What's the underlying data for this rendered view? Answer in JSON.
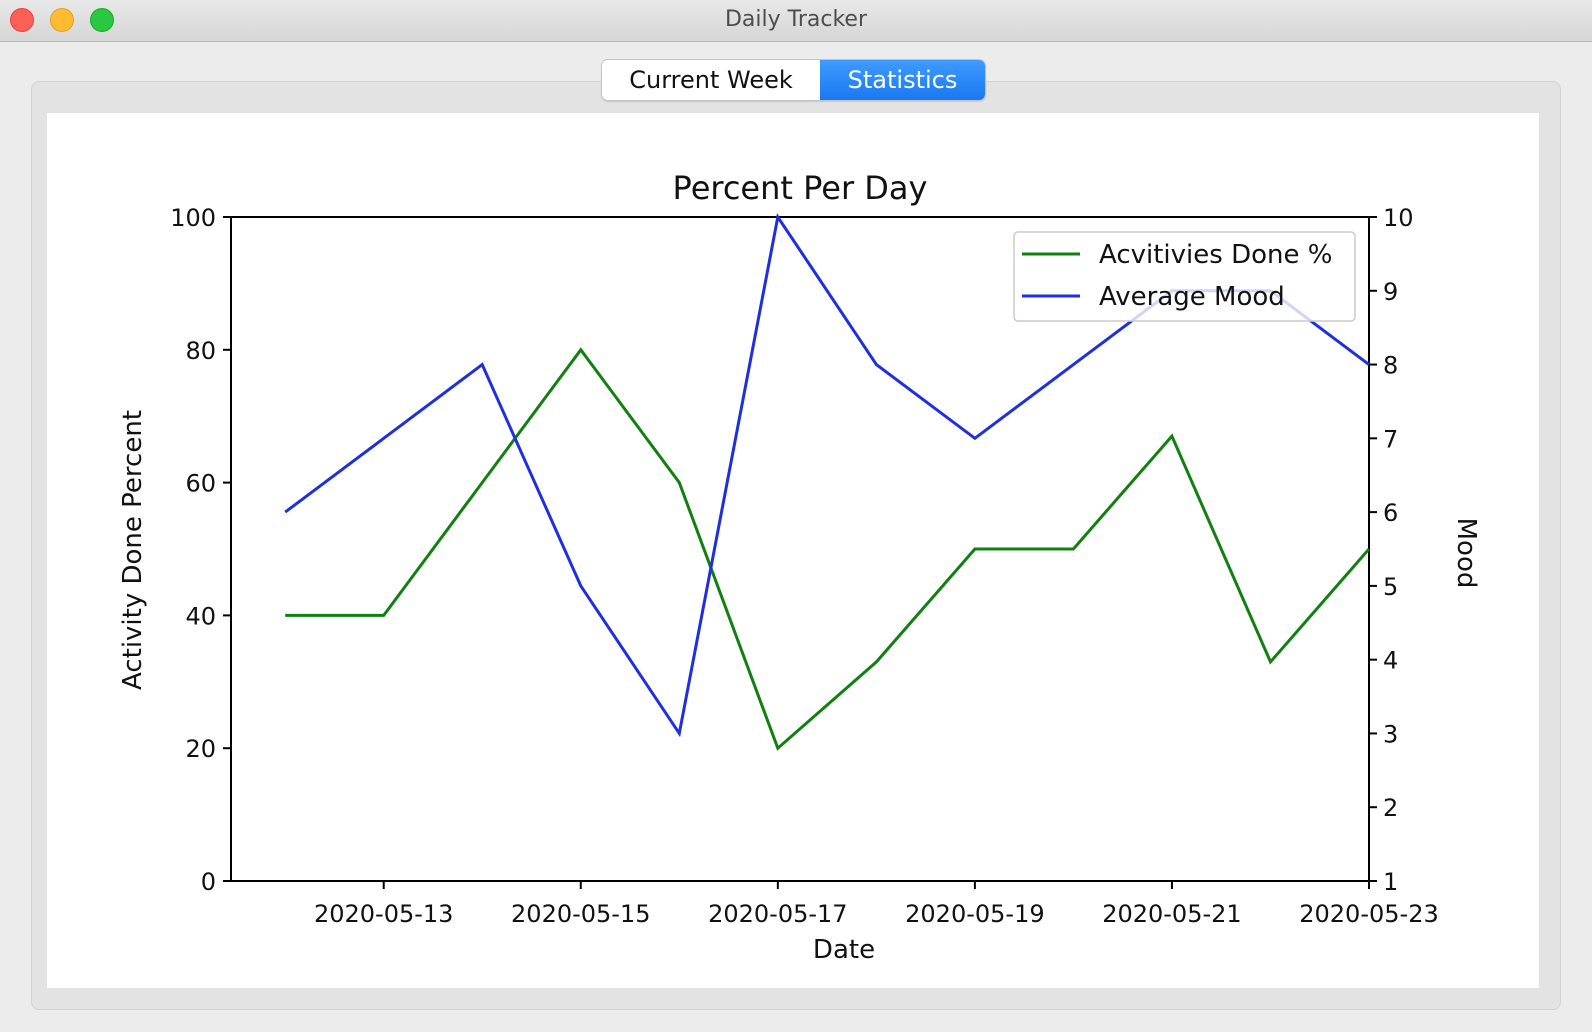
{
  "window": {
    "title": "Daily Tracker"
  },
  "tabs": [
    {
      "label": "Current Week",
      "active": false
    },
    {
      "label": "Statistics",
      "active": true
    }
  ],
  "chart_data": {
    "type": "line",
    "title": "Percent Per Day",
    "xlabel": "Date",
    "ylabel": "Activity Done Percent",
    "y2label": "Mood",
    "x": [
      "2020-05-12",
      "2020-05-13",
      "2020-05-14",
      "2020-05-15",
      "2020-05-16",
      "2020-05-17",
      "2020-05-18",
      "2020-05-19",
      "2020-05-20",
      "2020-05-21",
      "2020-05-22",
      "2020-05-23"
    ],
    "xlim": [
      "2020-05-11",
      "2020-05-23"
    ],
    "xticks": [
      "2020-05-13",
      "2020-05-15",
      "2020-05-17",
      "2020-05-19",
      "2020-05-21",
      "2020-05-23"
    ],
    "ylim": [
      0,
      100
    ],
    "yticks": [
      0,
      20,
      40,
      60,
      80,
      100
    ],
    "y2lim": [
      1,
      10
    ],
    "y2ticks": [
      1,
      2,
      3,
      4,
      5,
      6,
      7,
      8,
      9,
      10
    ],
    "series": [
      {
        "name": "Acvitivies Done %",
        "axis": "left",
        "color": "#118011",
        "values": [
          40,
          40,
          60,
          80,
          60,
          20,
          33,
          50,
          50,
          67,
          33,
          50
        ]
      },
      {
        "name": "Average Mood",
        "axis": "right",
        "color": "#1f2fe0",
        "values": [
          6,
          7,
          8,
          5,
          3,
          10,
          8,
          7,
          8,
          9,
          9,
          8
        ]
      }
    ],
    "legend": "top-right",
    "grid": false
  }
}
